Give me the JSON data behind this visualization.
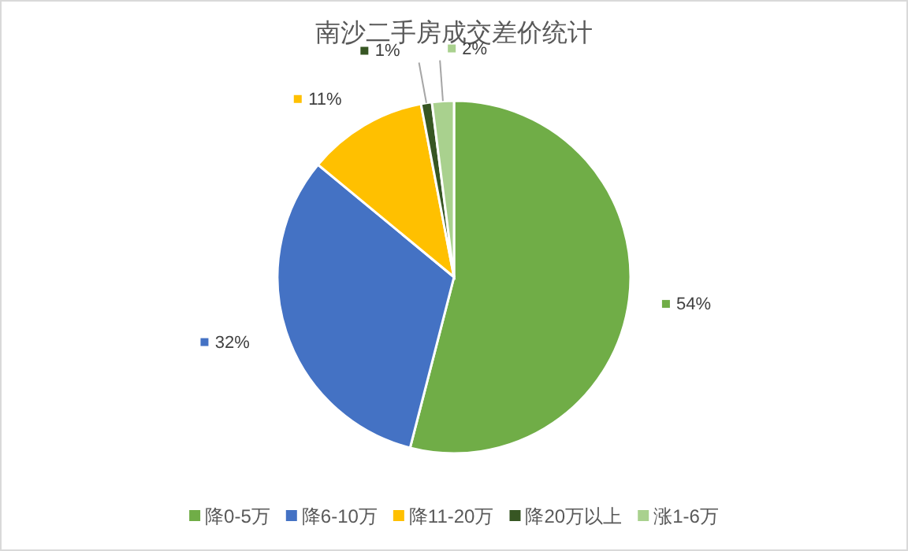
{
  "chart_data": {
    "type": "pie",
    "title": "南沙二手房成交差价统计",
    "categories": [
      "降0-5万",
      "降6-10万",
      "降11-20万",
      "降20万以上",
      "涨1-6万"
    ],
    "values": [
      54,
      32,
      11,
      1,
      2
    ],
    "colors": [
      "#70ad47",
      "#4472c4",
      "#ffc000",
      "#375623",
      "#a9d18e"
    ],
    "value_labels": [
      "54%",
      "32%",
      "11%",
      "1%",
      "2%"
    ],
    "legend": "bottom"
  }
}
